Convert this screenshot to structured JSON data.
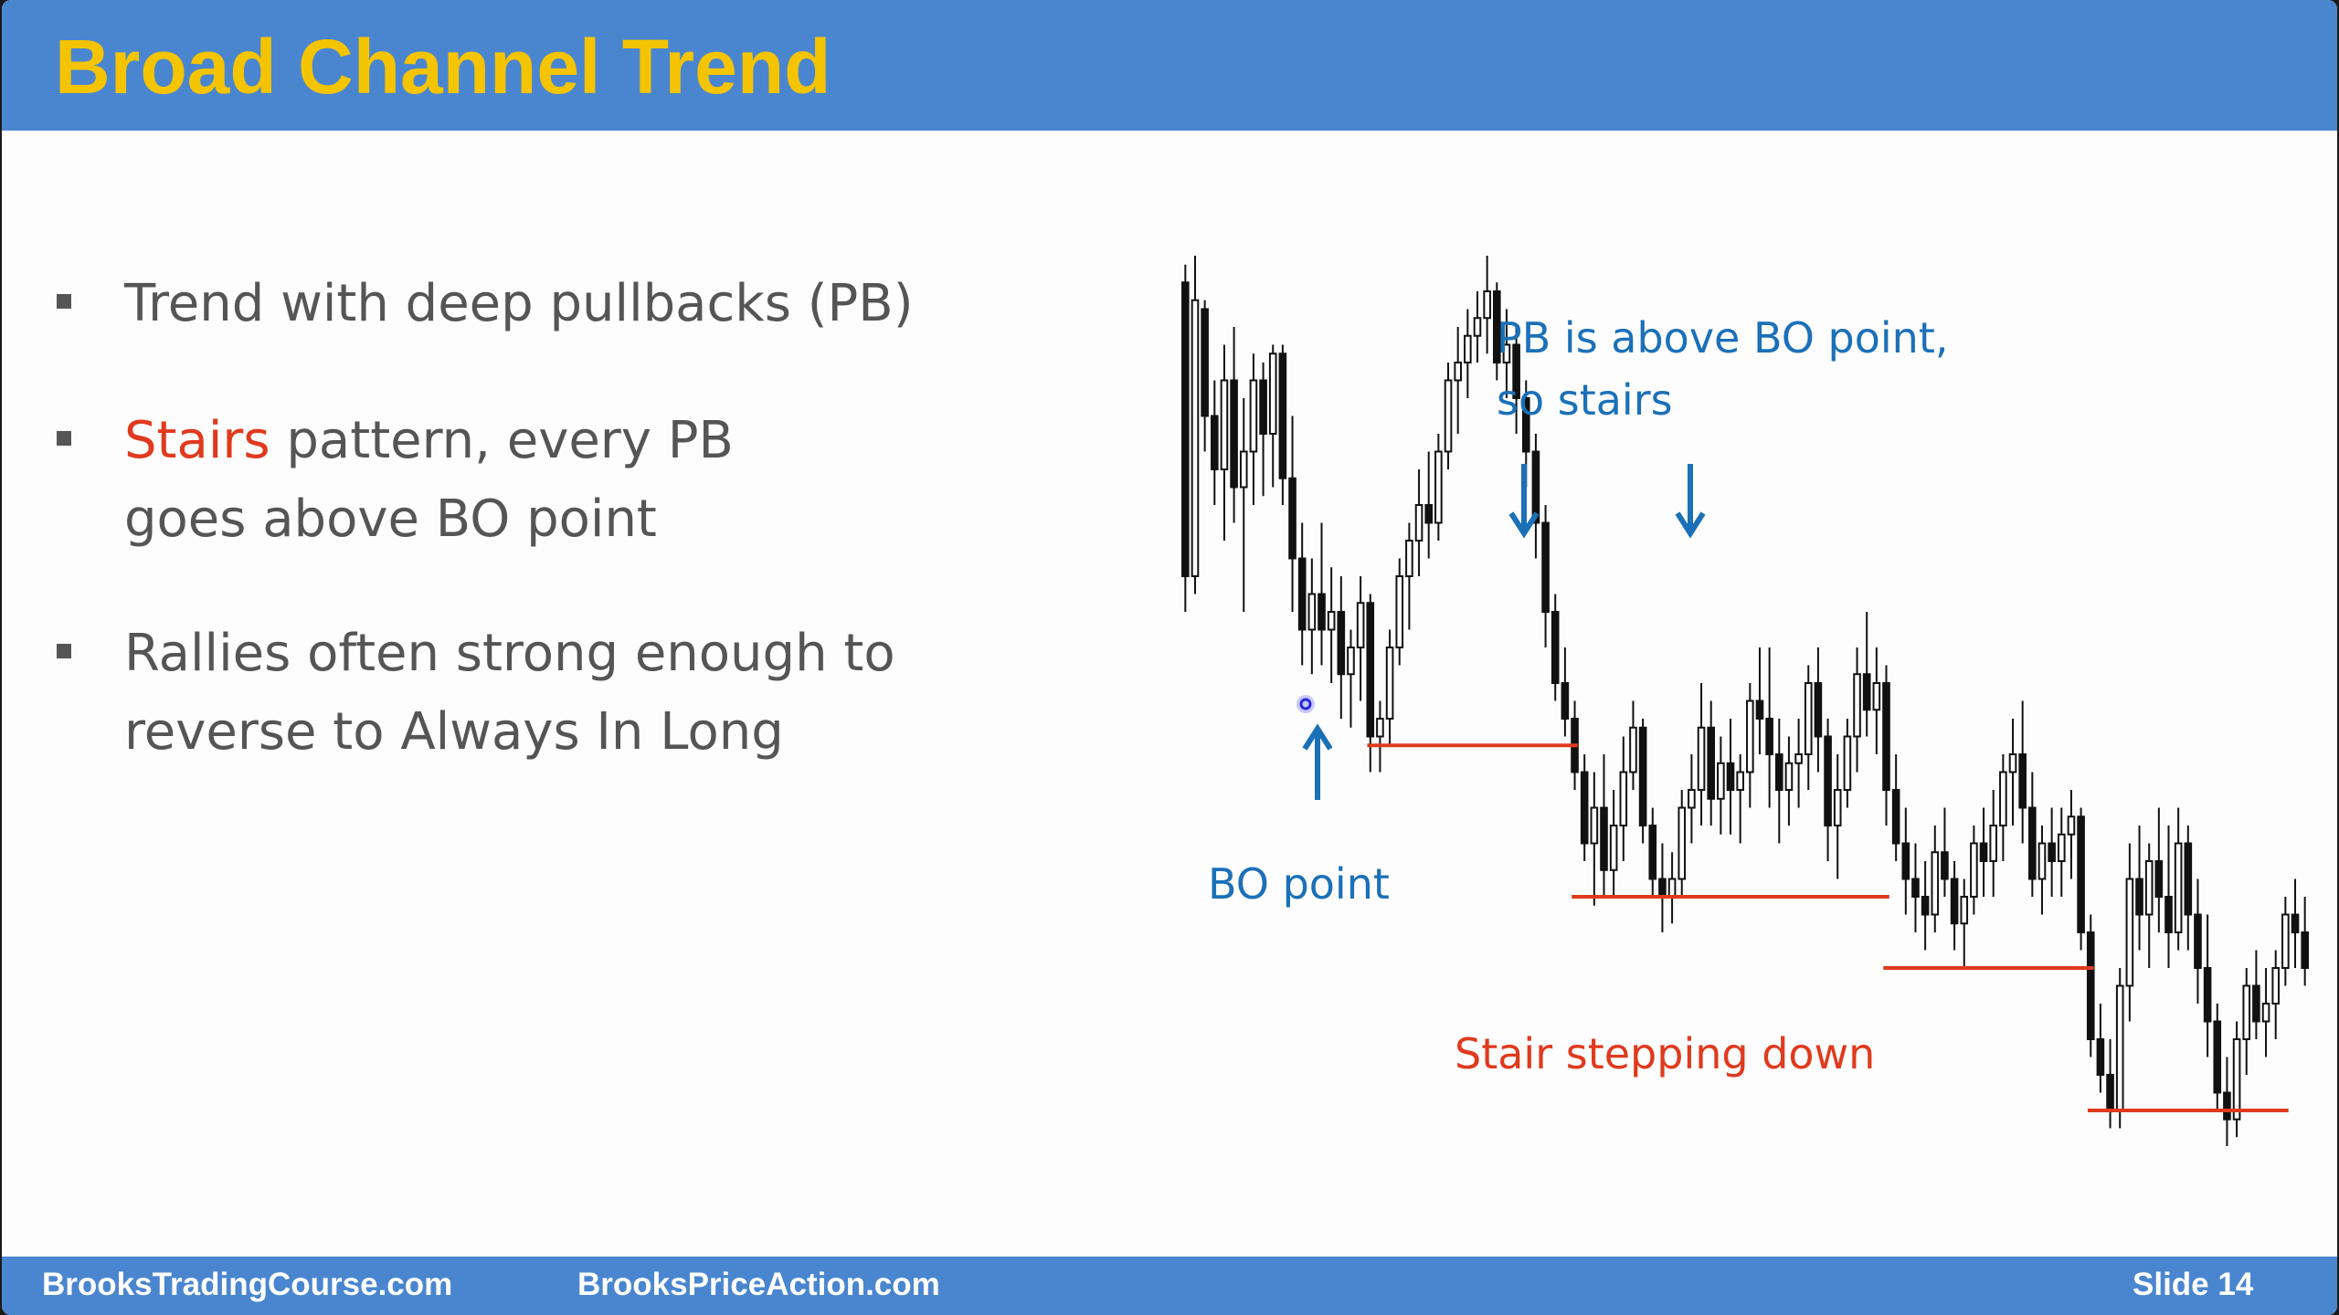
{
  "slide": {
    "title": "Broad Channel Trend",
    "bullets": [
      {
        "prefix": "",
        "highlight": "",
        "text": "Trend with deep pullbacks (PB)"
      },
      {
        "prefix": "",
        "highlight": "Stairs",
        "text": " pattern, every PB goes above BO point"
      },
      {
        "prefix": "",
        "highlight": "",
        "text": "Rallies often strong enough to reverse to Always In Long"
      }
    ],
    "annotations": {
      "pb_above_line1": "PB is above BO point,",
      "pb_above_line2": "so stairs",
      "bo_point": "BO point",
      "stair_stepping": "Stair stepping down"
    },
    "footer": {
      "left": "BrooksTradingCourse.com",
      "middle": "BrooksPriceAction.com",
      "slide_label": "Slide 14"
    }
  },
  "colors": {
    "title_bar": "#4a86cf",
    "title_text": "#f5c400",
    "accent_red": "#e03a1e",
    "annotation_blue": "#1b70b8"
  },
  "chart_data": {
    "type": "candlestick",
    "title": "",
    "xlabel": "",
    "ylabel": "",
    "description_units": "relative price (0 = chart low, 100 = chart high)",
    "ylim": [
      0,
      100
    ],
    "candles": [
      [
        97,
        99,
        60,
        64
      ],
      [
        64,
        100,
        62,
        95
      ],
      [
        94,
        95,
        78,
        82
      ],
      [
        82,
        86,
        72,
        76
      ],
      [
        76,
        90,
        68,
        86
      ],
      [
        86,
        92,
        70,
        74
      ],
      [
        74,
        84,
        60,
        78
      ],
      [
        78,
        89,
        72,
        86
      ],
      [
        86,
        88,
        73,
        80
      ],
      [
        80,
        90,
        74,
        89
      ],
      [
        89,
        90,
        72,
        75
      ],
      [
        75,
        82,
        60,
        66
      ],
      [
        66,
        70,
        54,
        58
      ],
      [
        58,
        66,
        53,
        62
      ],
      [
        62,
        70,
        54,
        58
      ],
      [
        58,
        65,
        52,
        60
      ],
      [
        60,
        64,
        48,
        53
      ],
      [
        53,
        58,
        47,
        56
      ],
      [
        56,
        64,
        50,
        61
      ],
      [
        61,
        62,
        42,
        46
      ],
      [
        46,
        50,
        42,
        48
      ],
      [
        48,
        58,
        45,
        56
      ],
      [
        56,
        66,
        54,
        64
      ],
      [
        64,
        70,
        58,
        68
      ],
      [
        68,
        76,
        64,
        72
      ],
      [
        72,
        78,
        66,
        70
      ],
      [
        70,
        80,
        68,
        78
      ],
      [
        78,
        88,
        76,
        86
      ],
      [
        86,
        92,
        80,
        88
      ],
      [
        88,
        94,
        84,
        91
      ],
      [
        91,
        96,
        88,
        93
      ],
      [
        93,
        100,
        89,
        96
      ],
      [
        96,
        97,
        86,
        88
      ],
      [
        88,
        94,
        84,
        90
      ],
      [
        90,
        92,
        80,
        84
      ],
      [
        84,
        86,
        74,
        78
      ],
      [
        78,
        80,
        66,
        70
      ],
      [
        70,
        72,
        56,
        60
      ],
      [
        60,
        62,
        50,
        52
      ],
      [
        52,
        56,
        46,
        48
      ],
      [
        48,
        50,
        40,
        42
      ],
      [
        42,
        44,
        32,
        34
      ],
      [
        34,
        42,
        27,
        38
      ],
      [
        38,
        44,
        28,
        31
      ],
      [
        31,
        40,
        28,
        36
      ],
      [
        36,
        46,
        32,
        42
      ],
      [
        42,
        50,
        40,
        47
      ],
      [
        47,
        48,
        34,
        36
      ],
      [
        36,
        38,
        28,
        30
      ],
      [
        30,
        34,
        24,
        28
      ],
      [
        28,
        33,
        25,
        30
      ],
      [
        30,
        40,
        28,
        38
      ],
      [
        38,
        44,
        34,
        40
      ],
      [
        40,
        52,
        36,
        47
      ],
      [
        47,
        50,
        36,
        39
      ],
      [
        39,
        46,
        35,
        43
      ],
      [
        43,
        48,
        35,
        40
      ],
      [
        40,
        44,
        34,
        42
      ],
      [
        42,
        52,
        38,
        50
      ],
      [
        50,
        56,
        44,
        48
      ],
      [
        48,
        56,
        38,
        44
      ],
      [
        44,
        48,
        34,
        40
      ],
      [
        40,
        46,
        36,
        43
      ],
      [
        43,
        48,
        38,
        44
      ],
      [
        44,
        54,
        40,
        52
      ],
      [
        52,
        56,
        42,
        46
      ],
      [
        46,
        48,
        32,
        36
      ],
      [
        36,
        44,
        30,
        40
      ],
      [
        40,
        48,
        38,
        46
      ],
      [
        46,
        56,
        42,
        53
      ],
      [
        53,
        60,
        46,
        49
      ],
      [
        49,
        56,
        44,
        52
      ],
      [
        52,
        54,
        36,
        40
      ],
      [
        40,
        44,
        32,
        34
      ],
      [
        34,
        38,
        26,
        30
      ],
      [
        30,
        34,
        24,
        28
      ],
      [
        28,
        32,
        22,
        26
      ],
      [
        26,
        36,
        24,
        33
      ],
      [
        33,
        38,
        28,
        30
      ],
      [
        30,
        32,
        22,
        25
      ],
      [
        25,
        30,
        20,
        28
      ],
      [
        28,
        36,
        26,
        34
      ],
      [
        34,
        38,
        28,
        32
      ],
      [
        32,
        40,
        28,
        36
      ],
      [
        36,
        44,
        32,
        42
      ],
      [
        42,
        48,
        36,
        44
      ],
      [
        44,
        50,
        34,
        38
      ],
      [
        38,
        42,
        28,
        30
      ],
      [
        30,
        36,
        26,
        34
      ],
      [
        34,
        38,
        28,
        32
      ],
      [
        32,
        38,
        28,
        35
      ],
      [
        35,
        40,
        30,
        37
      ],
      [
        37,
        38,
        22,
        24
      ],
      [
        24,
        26,
        10,
        12
      ],
      [
        12,
        16,
        6,
        8
      ],
      [
        8,
        12,
        2,
        4
      ],
      [
        4,
        20,
        2,
        18
      ],
      [
        18,
        34,
        14,
        30
      ],
      [
        30,
        36,
        22,
        26
      ],
      [
        26,
        34,
        20,
        32
      ],
      [
        32,
        38,
        24,
        28
      ],
      [
        28,
        36,
        20,
        24
      ],
      [
        24,
        38,
        22,
        34
      ],
      [
        34,
        36,
        22,
        26
      ],
      [
        26,
        30,
        16,
        20
      ],
      [
        20,
        26,
        10,
        14
      ],
      [
        14,
        16,
        4,
        6
      ],
      [
        6,
        10,
        0,
        3
      ],
      [
        3,
        14,
        1,
        12
      ],
      [
        12,
        20,
        8,
        18
      ],
      [
        18,
        22,
        12,
        14
      ],
      [
        14,
        20,
        10,
        16
      ],
      [
        16,
        22,
        12,
        20
      ],
      [
        20,
        28,
        18,
        26
      ],
      [
        26,
        30,
        20,
        24
      ],
      [
        24,
        28,
        18,
        20
      ]
    ],
    "stair_levels": [
      {
        "label": "BO point",
        "value": 45
      },
      {
        "value": 28
      },
      {
        "value": 20
      },
      {
        "value": 4
      }
    ]
  }
}
